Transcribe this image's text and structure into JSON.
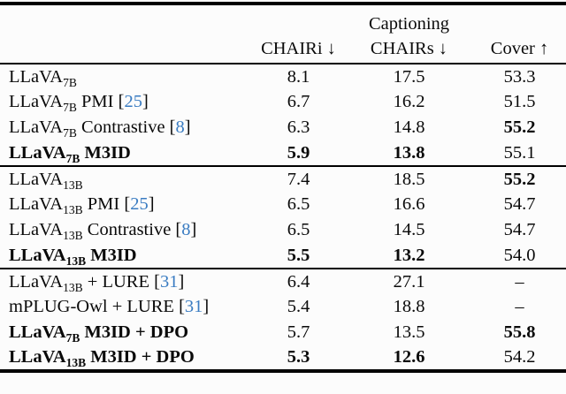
{
  "header": {
    "group": "Captioning",
    "cols": [
      "CHAIRi ↓",
      "CHAIRs ↓",
      "Cover ↑"
    ]
  },
  "colors": {
    "citation_link": "#3a7cc2",
    "text": "#0a0a0a",
    "rule": "#000000"
  },
  "groups": [
    {
      "rows": [
        {
          "pre": "LLaVA",
          "sub": "7B",
          "mid": "",
          "cite_open": "",
          "cite": "",
          "cite_close": "",
          "chairi": "8.1",
          "chairs": "17.5",
          "cover": "53.3"
        },
        {
          "pre": "LLaVA",
          "sub": "7B",
          "mid": " PMI ",
          "cite_open": "[",
          "cite": "25",
          "cite_close": "]",
          "chairi": "6.7",
          "chairs": "16.2",
          "cover": "51.5"
        },
        {
          "pre": "LLaVA",
          "sub": "7B",
          "mid": " Contrastive ",
          "cite_open": "[",
          "cite": "8",
          "cite_close": "]",
          "chairi": "6.3",
          "chairs": "14.8",
          "cover": "55.2"
        },
        {
          "pre": "LLaVA",
          "sub": "7B",
          "mid": " M3ID",
          "cite_open": "",
          "cite": "",
          "cite_close": "",
          "chairi": "5.9",
          "chairs": "13.8",
          "cover": "55.1"
        }
      ]
    },
    {
      "rows": [
        {
          "pre": "LLaVA",
          "sub": "13B",
          "mid": "",
          "cite_open": "",
          "cite": "",
          "cite_close": "",
          "chairi": "7.4",
          "chairs": "18.5",
          "cover": "55.2"
        },
        {
          "pre": "LLaVA",
          "sub": "13B",
          "mid": " PMI ",
          "cite_open": "[",
          "cite": "25",
          "cite_close": "]",
          "chairi": "6.5",
          "chairs": "16.6",
          "cover": "54.7"
        },
        {
          "pre": "LLaVA",
          "sub": "13B",
          "mid": " Contrastive ",
          "cite_open": "[",
          "cite": "8",
          "cite_close": "]",
          "chairi": "6.5",
          "chairs": "14.5",
          "cover": "54.7"
        },
        {
          "pre": "LLaVA",
          "sub": "13B",
          "mid": " M3ID",
          "cite_open": "",
          "cite": "",
          "cite_close": "",
          "chairi": "5.5",
          "chairs": "13.2",
          "cover": "54.0"
        }
      ]
    },
    {
      "rows": [
        {
          "pre": "LLaVA",
          "sub": "13B",
          "mid": " + LURE ",
          "cite_open": "[",
          "cite": "31",
          "cite_close": "]",
          "chairi": "6.4",
          "chairs": "27.1",
          "cover": "–"
        },
        {
          "pre": "mPLUG-Owl + LURE ",
          "sub": "",
          "mid": "",
          "cite_open": "[",
          "cite": "31",
          "cite_close": "]",
          "chairi": "5.4",
          "chairs": "18.8",
          "cover": "–"
        },
        {
          "pre": "LLaVA",
          "sub": "7B",
          "mid": " M3ID + DPO",
          "cite_open": "",
          "cite": "",
          "cite_close": "",
          "chairi": "5.7",
          "chairs": "13.5",
          "cover": "55.8"
        },
        {
          "pre": "LLaVA",
          "sub": "13B",
          "mid": " M3ID + DPO",
          "cite_open": "",
          "cite": "",
          "cite_close": "",
          "chairi": "5.3",
          "chairs": "12.6",
          "cover": "54.2"
        }
      ]
    }
  ]
}
